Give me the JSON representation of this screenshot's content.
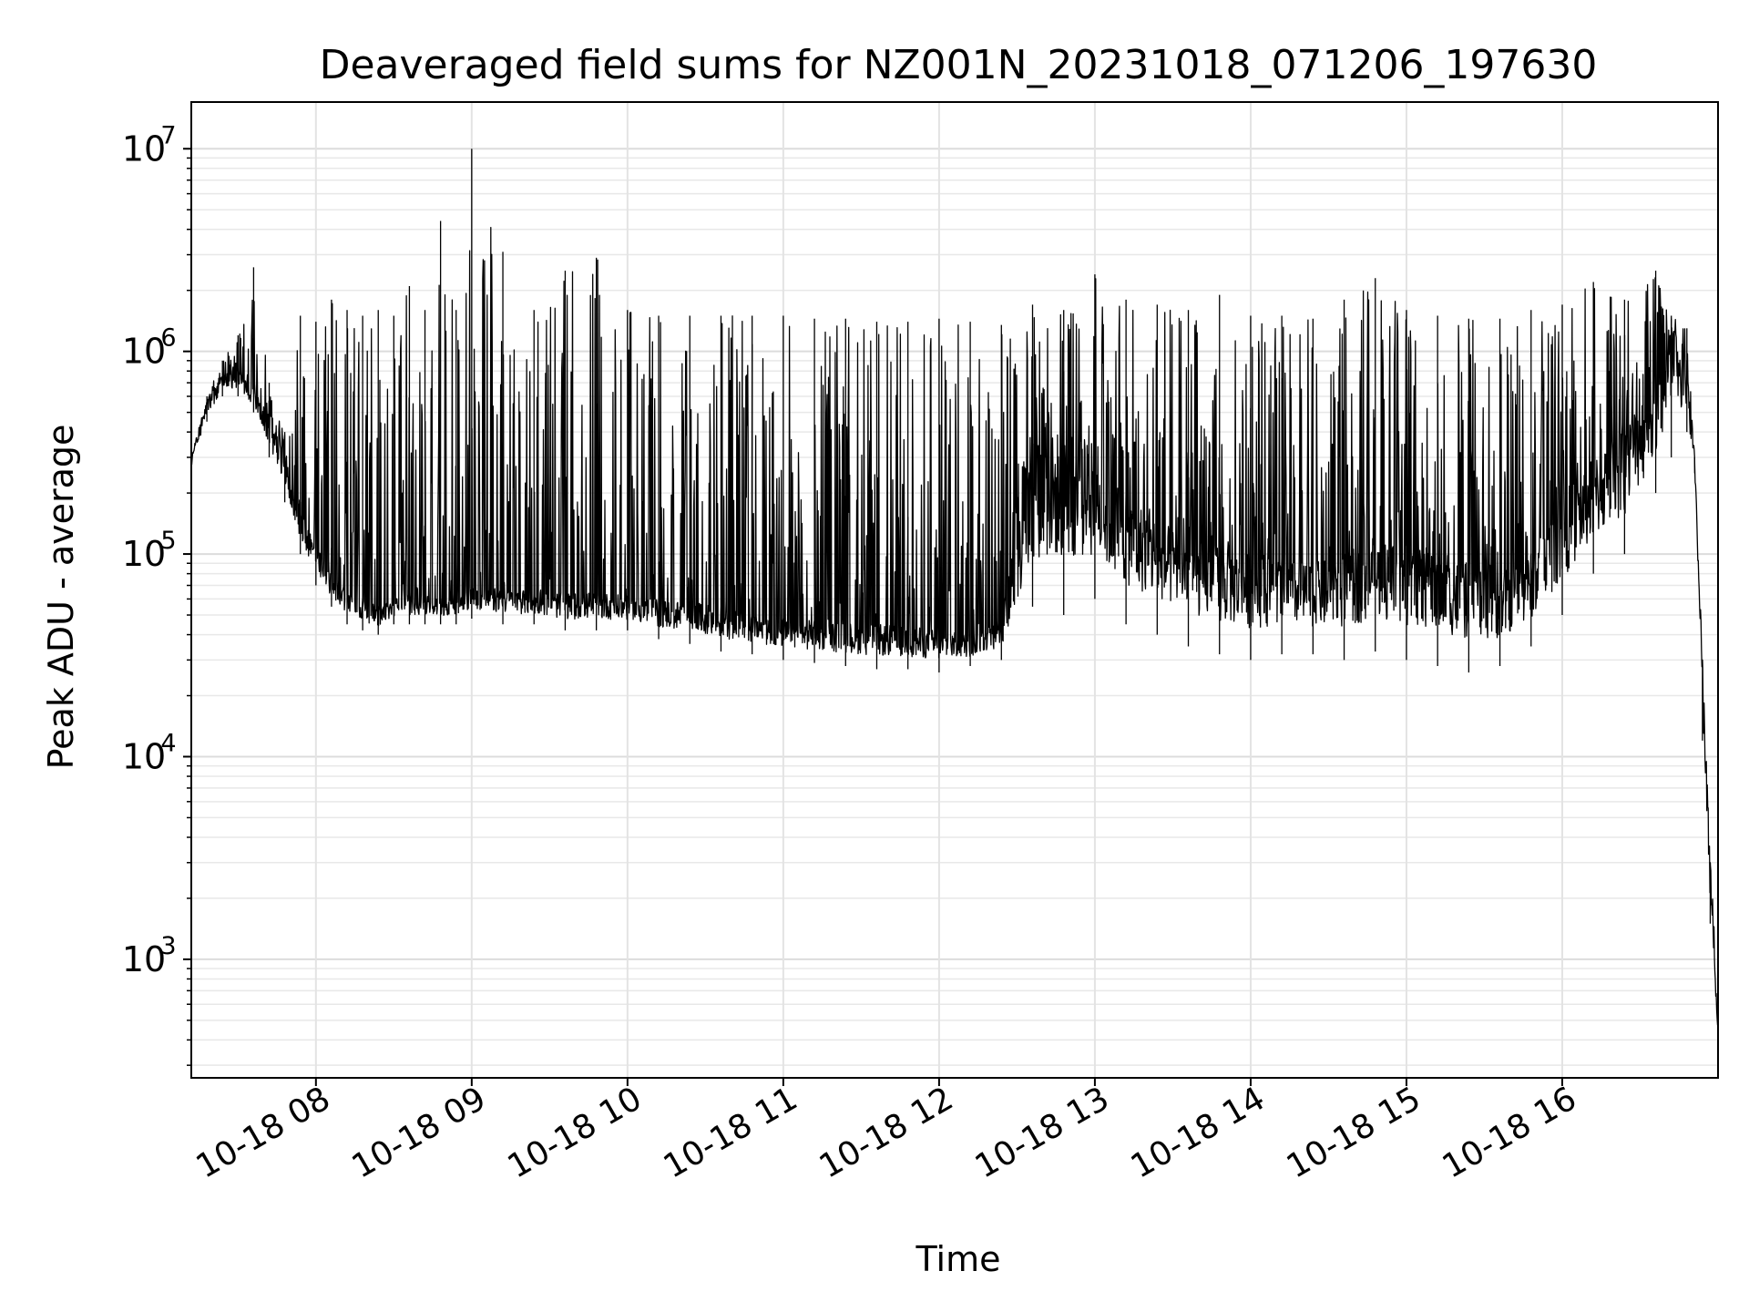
{
  "chart_data": {
    "type": "line",
    "title": "Deaveraged field sums for NZ001N_20231018_071206_197630",
    "xlabel": "Time",
    "ylabel": "Peak ADU - average",
    "yscale": "log",
    "ylim": [
      260,
      17000000
    ],
    "xlim": [
      "2023-10-18 07:12",
      "2023-10-18 17:00"
    ],
    "grid": true,
    "x_ticks": [
      {
        "t": "2023-10-18 08:00",
        "label": "10-18 08"
      },
      {
        "t": "2023-10-18 09:00",
        "label": "10-18 09"
      },
      {
        "t": "2023-10-18 10:00",
        "label": "10-18 10"
      },
      {
        "t": "2023-10-18 11:00",
        "label": "10-18 11"
      },
      {
        "t": "2023-10-18 12:00",
        "label": "10-18 12"
      },
      {
        "t": "2023-10-18 13:00",
        "label": "10-18 13"
      },
      {
        "t": "2023-10-18 14:00",
        "label": "10-18 14"
      },
      {
        "t": "2023-10-18 15:00",
        "label": "10-18 15"
      },
      {
        "t": "2023-10-18 16:00",
        "label": "10-18 16"
      }
    ],
    "y_ticks": [
      {
        "value": 1000,
        "base": "10",
        "exp": "3"
      },
      {
        "value": 10000,
        "base": "10",
        "exp": "4"
      },
      {
        "value": 100000,
        "base": "10",
        "exp": "5"
      },
      {
        "value": 1000000,
        "base": "10",
        "exp": "6"
      },
      {
        "value": 10000000,
        "base": "10",
        "exp": "7"
      }
    ],
    "series": [
      {
        "line_color": "#000000",
        "x": [
          "2023-10-18 07:12",
          "2023-10-18 07:18",
          "2023-10-18 07:24",
          "2023-10-18 07:30",
          "2023-10-18 07:36",
          "2023-10-18 07:42",
          "2023-10-18 07:48",
          "2023-10-18 07:54",
          "2023-10-18 08:00",
          "2023-10-18 08:06",
          "2023-10-18 08:12",
          "2023-10-18 08:18",
          "2023-10-18 08:24",
          "2023-10-18 08:30",
          "2023-10-18 08:36",
          "2023-10-18 08:42",
          "2023-10-18 08:48",
          "2023-10-18 08:54",
          "2023-10-18 09:00",
          "2023-10-18 09:12",
          "2023-10-18 09:24",
          "2023-10-18 09:36",
          "2023-10-18 09:48",
          "2023-10-18 10:00",
          "2023-10-18 10:12",
          "2023-10-18 10:24",
          "2023-10-18 10:36",
          "2023-10-18 10:48",
          "2023-10-18 11:00",
          "2023-10-18 11:12",
          "2023-10-18 11:24",
          "2023-10-18 11:36",
          "2023-10-18 11:48",
          "2023-10-18 12:00",
          "2023-10-18 12:12",
          "2023-10-18 12:24",
          "2023-10-18 12:36",
          "2023-10-18 12:48",
          "2023-10-18 13:00",
          "2023-10-18 13:12",
          "2023-10-18 13:24",
          "2023-10-18 13:36",
          "2023-10-18 13:48",
          "2023-10-18 14:00",
          "2023-10-18 14:12",
          "2023-10-18 14:24",
          "2023-10-18 14:36",
          "2023-10-18 14:48",
          "2023-10-18 15:00",
          "2023-10-18 15:12",
          "2023-10-18 15:24",
          "2023-10-18 15:36",
          "2023-10-18 15:48",
          "2023-10-18 16:00",
          "2023-10-18 16:12",
          "2023-10-18 16:24",
          "2023-10-18 16:36",
          "2023-10-18 16:42",
          "2023-10-18 16:48",
          "2023-10-18 16:51",
          "2023-10-18 16:54",
          "2023-10-18 16:57",
          "2023-10-18 17:00"
        ],
        "baseline": [
          300000,
          550000,
          780000,
          820000,
          650000,
          480000,
          300000,
          180000,
          110000,
          80000,
          70000,
          60000,
          55000,
          60000,
          65000,
          62000,
          60000,
          65000,
          70000,
          68000,
          66000,
          64000,
          65000,
          62000,
          60000,
          58000,
          55000,
          50000,
          48000,
          47000,
          46000,
          45000,
          44000,
          42000,
          40000,
          50000,
          350000,
          420000,
          300000,
          200000,
          150000,
          120000,
          110000,
          100000,
          95000,
          90000,
          100000,
          120000,
          110000,
          100000,
          90000,
          80000,
          100000,
          200000,
          300000,
          450000,
          800000,
          1200000,
          900000,
          300000,
          30000,
          3000,
          450
        ],
        "peak": [
          300000,
          600000,
          900000,
          1200000,
          2600000,
          700000,
          400000,
          1500000,
          1400000,
          1800000,
          1600000,
          1500000,
          1600000,
          1500000,
          2100000,
          1600000,
          4400000,
          1600000,
          10000000,
          3100000,
          1600000,
          2500000,
          2900000,
          1600000,
          1500000,
          1500000,
          1500000,
          1500000,
          1500000,
          1450000,
          1450000,
          1400000,
          1400000,
          1450000,
          1400000,
          1350000,
          1700000,
          1600000,
          2400000,
          1800000,
          1700000,
          1600000,
          1900000,
          1500000,
          1500000,
          1450000,
          1800000,
          2300000,
          1600000,
          1500000,
          1450000,
          1450000,
          1600000,
          1700000,
          2200000,
          1800000,
          2500000,
          1500000,
          1300000,
          300000,
          30000,
          3000,
          1000
        ],
        "trough": [
          260000,
          450000,
          600000,
          600000,
          500000,
          300000,
          180000,
          100000,
          70000,
          55000,
          45000,
          42000,
          40000,
          45000,
          45000,
          45000,
          45000,
          45000,
          48000,
          45000,
          45000,
          42000,
          42000,
          42000,
          38000,
          36000,
          33000,
          32000,
          30000,
          29000,
          28000,
          27000,
          27000,
          26000,
          28000,
          30000,
          55000,
          50000,
          60000,
          45000,
          40000,
          35000,
          32000,
          30000,
          32000,
          32000,
          30000,
          33000,
          30000,
          28000,
          26000,
          28000,
          35000,
          50000,
          80000,
          100000,
          200000,
          300000,
          400000,
          250000,
          12000,
          1500,
          420
        ]
      }
    ]
  }
}
